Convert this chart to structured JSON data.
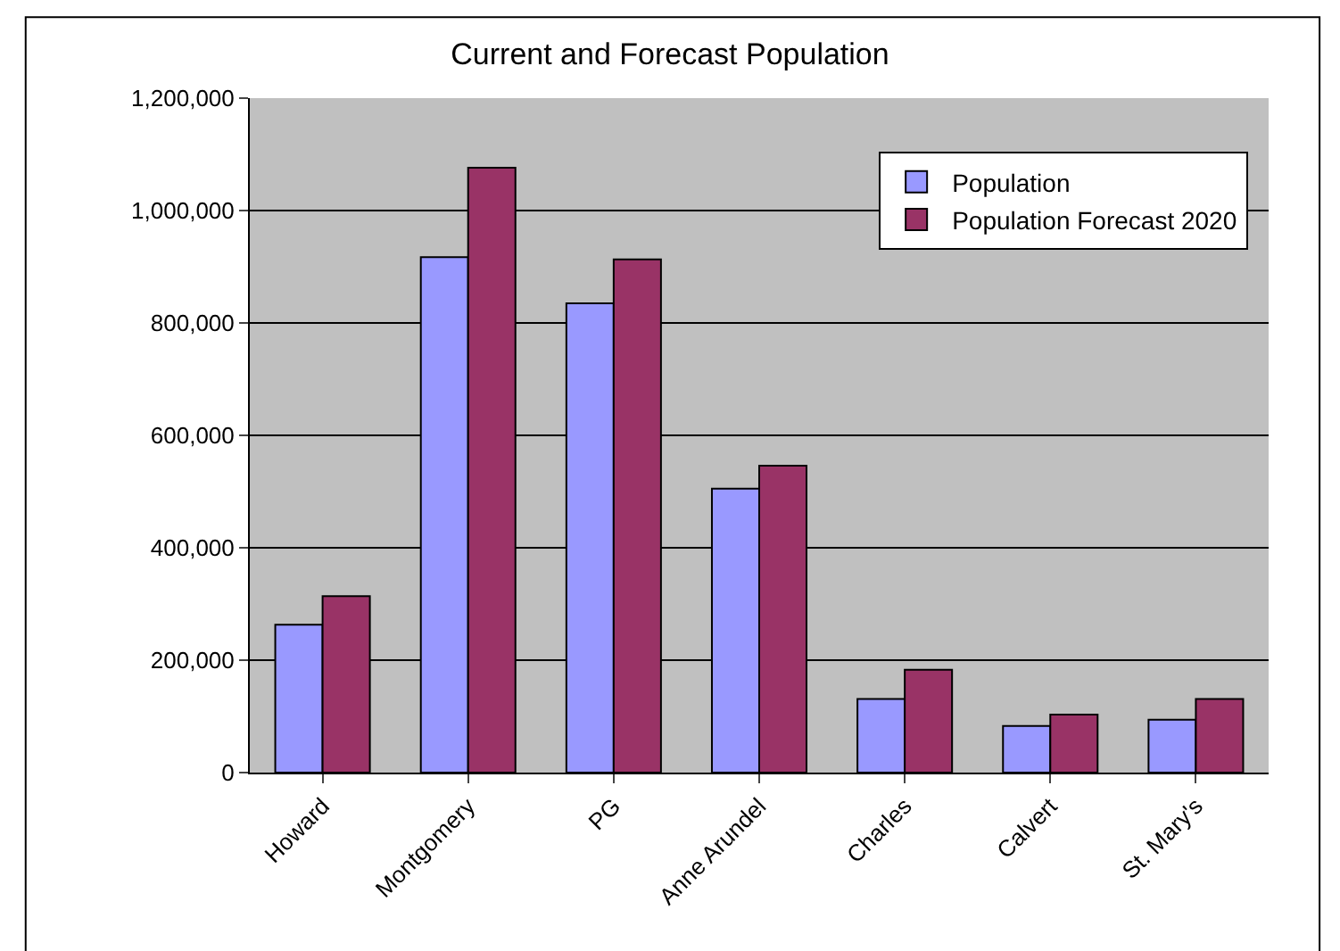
{
  "chart_data": {
    "type": "bar",
    "title": "Current and Forecast Population",
    "categories": [
      "Howard",
      "Montgomery",
      "PG",
      "Anne Arundel",
      "Charles",
      "Calvert",
      "St. Mary's"
    ],
    "series": [
      {
        "name": "Population",
        "color": "#9999ff",
        "values": [
          263000,
          917000,
          835000,
          505000,
          131000,
          83000,
          94000
        ]
      },
      {
        "name": "Population Forecast 2020",
        "color": "#993366",
        "values": [
          314000,
          1076000,
          913000,
          546000,
          183000,
          103000,
          131000
        ]
      }
    ],
    "ylim": [
      0,
      1200000
    ],
    "yticks": [
      {
        "value": 0,
        "label": "0"
      },
      {
        "value": 200000,
        "label": "200,000"
      },
      {
        "value": 400000,
        "label": "400,000"
      },
      {
        "value": 600000,
        "label": "600,000"
      },
      {
        "value": 800000,
        "label": "800,000"
      },
      {
        "value": 1000000,
        "label": "1,000,000"
      },
      {
        "value": 1200000,
        "label": "1,200,000"
      }
    ],
    "grid": "y",
    "legend": "top right"
  }
}
